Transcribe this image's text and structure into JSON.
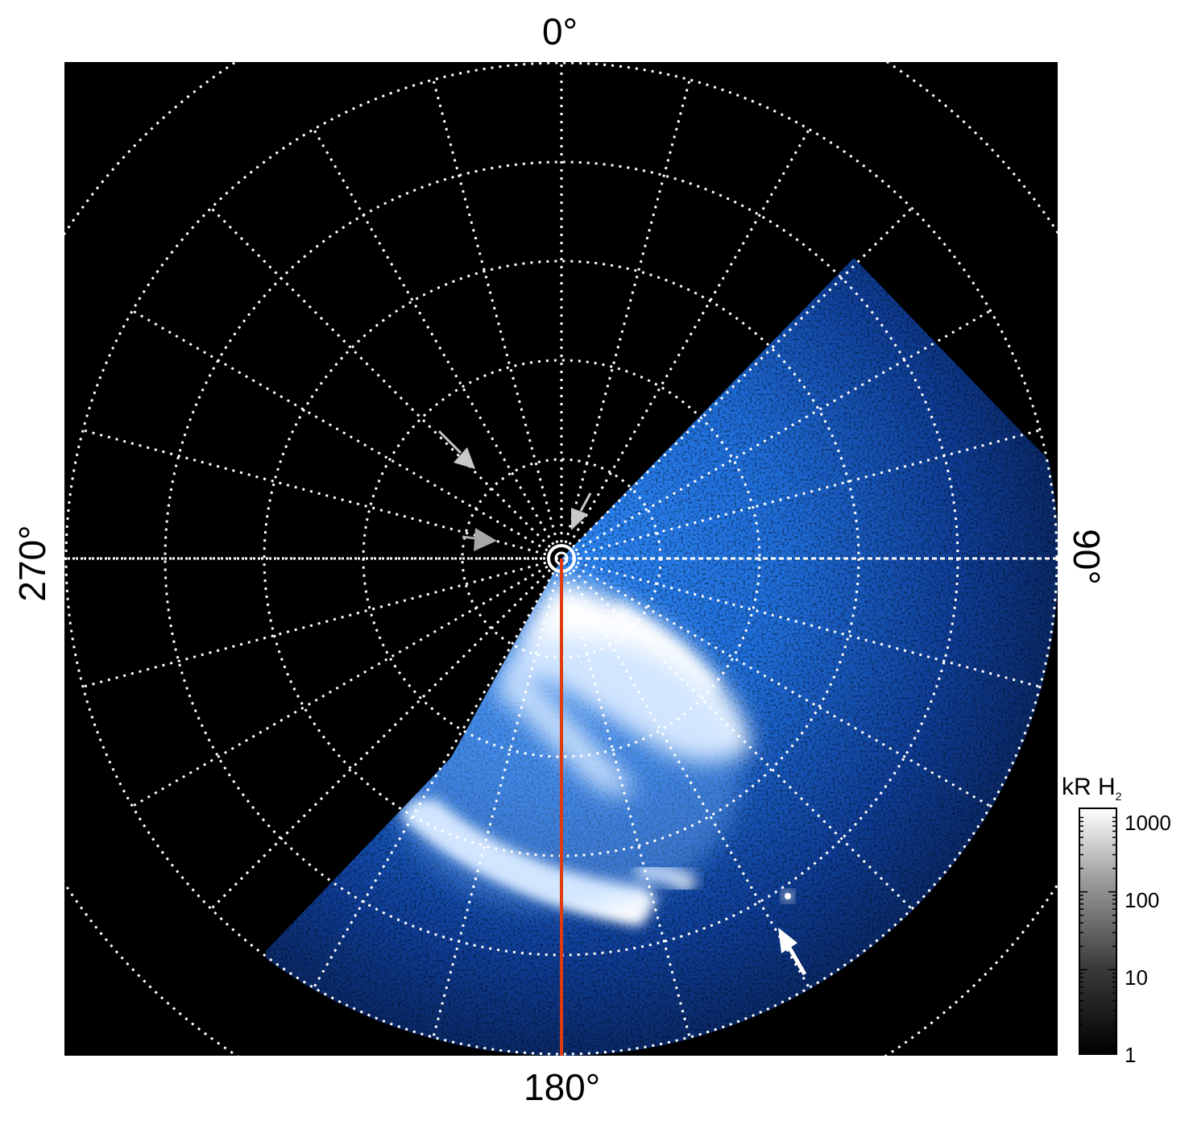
{
  "figure": {
    "type": "polar auroral projection",
    "labels": {
      "top": "0°",
      "bottom": "180°",
      "left": "270°",
      "right": "90°"
    },
    "colorbar": {
      "title_main": "kR H",
      "title_sub": "2",
      "scale": "log",
      "ticks": [
        "1000",
        "100",
        "10",
        "1"
      ],
      "tick_values": [
        1000,
        100,
        10,
        1
      ]
    },
    "colors": {
      "background": "#000000",
      "grid": "#ffffff",
      "emission_low": "#0a2a6a",
      "emission_mid": "#1a6fe0",
      "emission_high": "#ffffff",
      "meridian_line": "#e03a0f",
      "arrow_gray": "#c8c8c8",
      "arrow_white": "#ffffff"
    },
    "grid": {
      "latitude_circles": 6,
      "longitude_spokes": 24,
      "style": "dotted"
    },
    "annotations": [
      {
        "name": "arrow-upper-left",
        "color": "gray"
      },
      {
        "name": "arrow-left-center",
        "color": "gray"
      },
      {
        "name": "arrow-center",
        "color": "gray"
      },
      {
        "name": "arrow-lower-right",
        "color": "white"
      }
    ]
  }
}
